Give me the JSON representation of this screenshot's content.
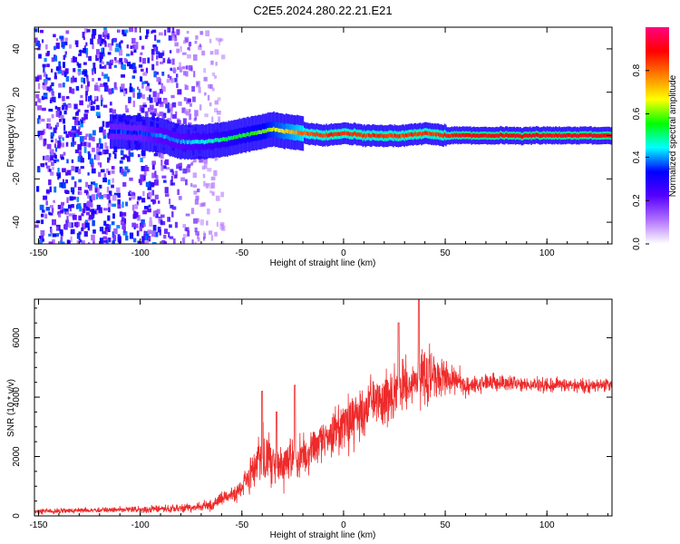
{
  "title": "C2E5.2024.280.22.21.E21",
  "chart_data": [
    {
      "type": "heatmap",
      "xlabel": "Height of straight line (km)",
      "ylabel": "Frequency (Hz)",
      "xlim": [
        -152,
        132
      ],
      "ylim": [
        -50,
        50
      ],
      "xticks": [
        -150,
        -100,
        -50,
        0,
        50,
        100
      ],
      "yticks": [
        -40,
        -20,
        0,
        20,
        40
      ],
      "colorbar": {
        "label": "Normalized spectral amplitude",
        "range": [
          0,
          1
        ],
        "ticks": [
          0.0,
          0.2,
          0.4,
          0.6,
          0.8
        ],
        "colors": [
          "#ffffff",
          "#b070ff",
          "#5500ff",
          "#0000ff",
          "#00ffff",
          "#00ff00",
          "#ffff00",
          "#ff8000",
          "#ff0000",
          "#ff0080"
        ]
      },
      "ridge": {
        "x": [
          -115,
          -100,
          -90,
          -80,
          -70,
          -60,
          -50,
          -40,
          -35,
          -30,
          -20,
          -10,
          0,
          10,
          20,
          30,
          40,
          50,
          60,
          80,
          100,
          130
        ],
        "y": [
          2,
          1,
          0,
          -3,
          -3,
          -2,
          0,
          2,
          3,
          2,
          1,
          0,
          1,
          0,
          0,
          0,
          1,
          0,
          0,
          0,
          0,
          0
        ],
        "amp": [
          0.35,
          0.35,
          0.4,
          0.4,
          0.45,
          0.5,
          0.55,
          0.6,
          0.65,
          0.7,
          0.8,
          0.85,
          0.85,
          0.85,
          0.85,
          0.85,
          0.85,
          0.85,
          0.9,
          0.9,
          0.9,
          0.9
        ]
      },
      "noise_region": {
        "x": [
          -152,
          -60
        ],
        "amp": [
          0.2,
          0.4
        ]
      }
    },
    {
      "type": "line",
      "xlabel": "Height of straight line (km)",
      "ylabel": "SNR (10 * v/v)",
      "xlim": [
        -152,
        132
      ],
      "ylim": [
        0,
        7300
      ],
      "xticks": [
        -150,
        -100,
        -50,
        0,
        50,
        100
      ],
      "yticks": [
        0,
        2000,
        4000,
        6000
      ],
      "color": "#ee2a2a",
      "envelope": {
        "x": [
          -152,
          -110,
          -80,
          -65,
          -60,
          -50,
          -45,
          -40,
          -35,
          -30,
          -25,
          -20,
          -10,
          0,
          10,
          20,
          30,
          40,
          50,
          60,
          70,
          100,
          132
        ],
        "center": [
          150,
          200,
          250,
          350,
          600,
          900,
          1500,
          2000,
          1800,
          1700,
          2000,
          2000,
          2600,
          3000,
          3500,
          4000,
          4400,
          4700,
          4700,
          4400,
          4500,
          4400,
          4400
        ],
        "spread": [
          120,
          150,
          200,
          250,
          350,
          500,
          900,
          1400,
          1200,
          1100,
          1100,
          1000,
          1100,
          1200,
          1200,
          1300,
          1300,
          1400,
          900,
          500,
          400,
          350,
          350
        ]
      },
      "peaks": [
        {
          "x": -40,
          "y": 4200
        },
        {
          "x": -33,
          "y": 3500
        },
        {
          "x": -24,
          "y": 4400
        },
        {
          "x": 27,
          "y": 6500
        },
        {
          "x": 37,
          "y": 7300
        }
      ]
    }
  ]
}
